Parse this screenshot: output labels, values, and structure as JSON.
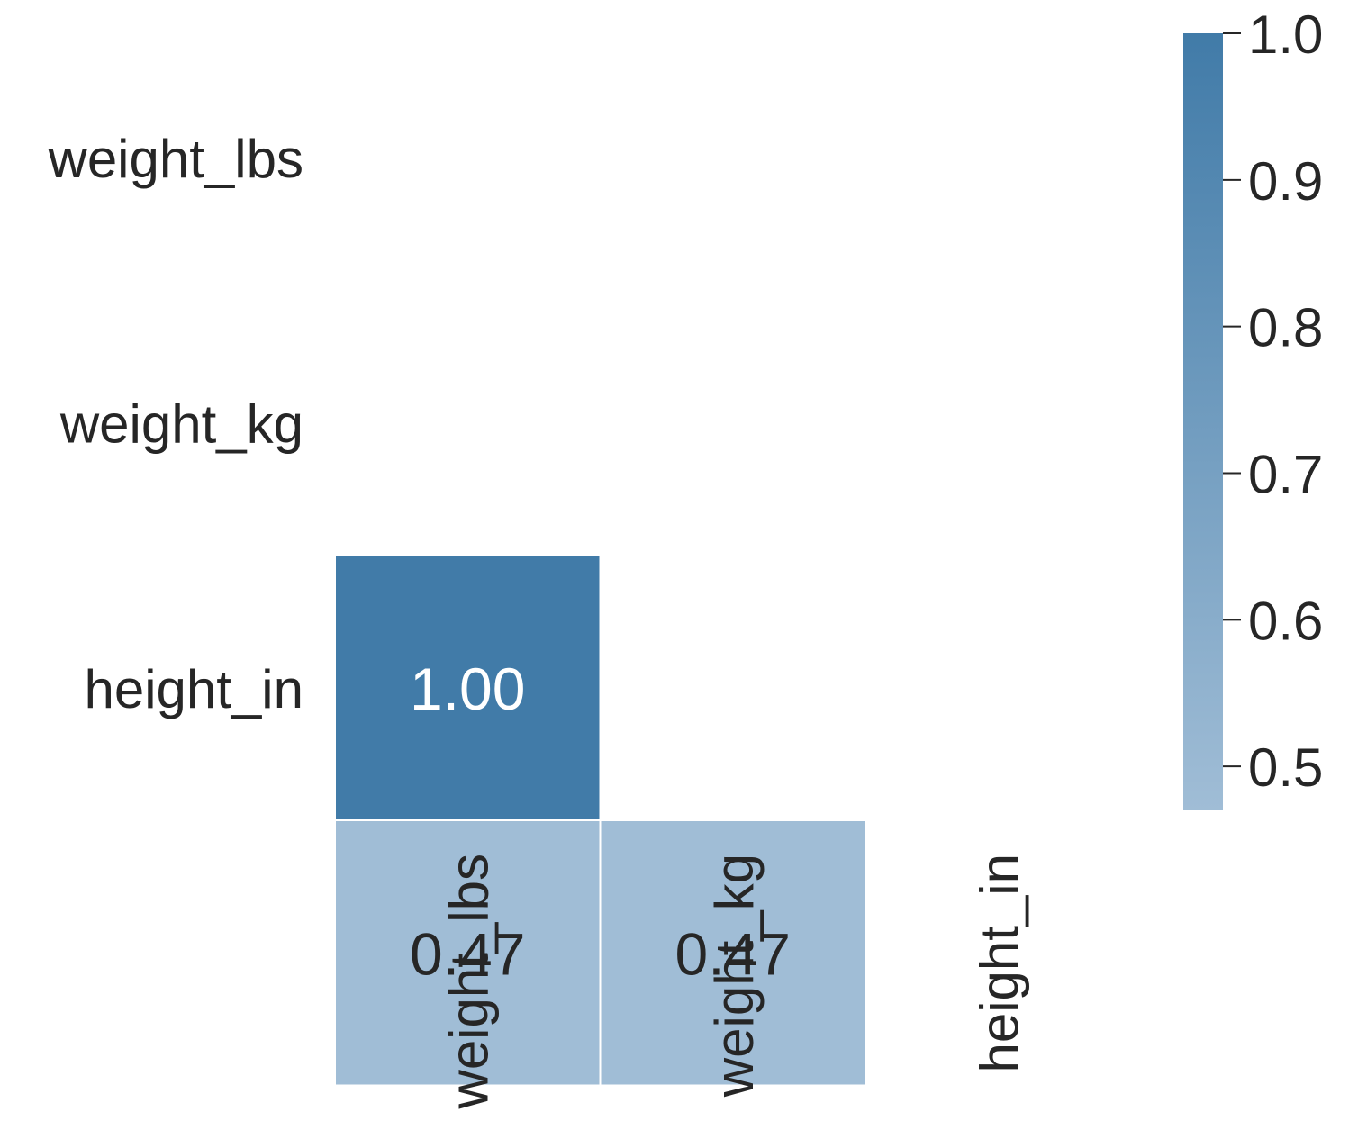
{
  "chart_data": {
    "type": "heatmap",
    "title": "",
    "xlabel": "",
    "ylabel": "",
    "row_labels": [
      "weight_lbs",
      "weight_kg",
      "height_in"
    ],
    "col_labels": [
      "weight_lbs",
      "weight_kg",
      "height_in"
    ],
    "mask": "upper-triangle-including-diagonal",
    "cells": [
      {
        "row": 1,
        "col": 0,
        "value": 1.0,
        "label": "1.00"
      },
      {
        "row": 2,
        "col": 0,
        "value": 0.47,
        "label": "0.47"
      },
      {
        "row": 2,
        "col": 1,
        "value": 0.47,
        "label": "0.47"
      }
    ],
    "colorbar": {
      "range": [
        0.47,
        1.0
      ],
      "ticks": [
        1.0,
        0.9,
        0.8,
        0.7,
        0.6,
        0.5
      ],
      "tick_labels": [
        "1.0",
        "0.9",
        "0.8",
        "0.7",
        "0.6",
        "0.5"
      ],
      "color_low": "#a0bdd6",
      "color_high": "#417ba8"
    },
    "grid": false,
    "legend": "colorbar-right"
  }
}
